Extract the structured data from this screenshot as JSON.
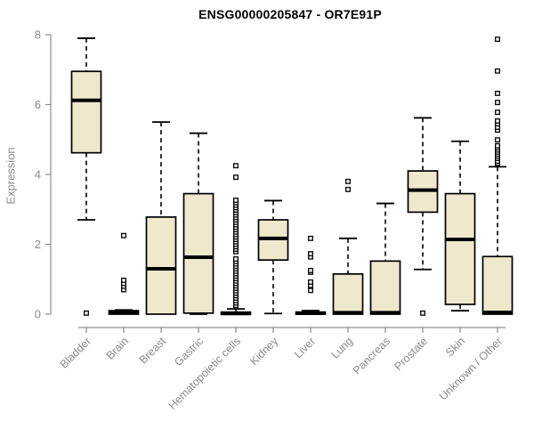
{
  "title": "ENSG00000205847 - OR7E91P",
  "chart_data": {
    "type": "boxplot",
    "title": "ENSG00000205847 - OR7E91P",
    "xlabel": "",
    "ylabel": "Expression",
    "ylim": [
      0,
      8
    ],
    "y_ticks": [
      0,
      2,
      4,
      6,
      8
    ],
    "grid": false,
    "legend": "none",
    "categories": [
      "Bladder",
      "Brain",
      "Breast",
      "Gastric",
      "Hematopoietic cells",
      "Kidney",
      "Liver",
      "Lung",
      "Pancreas",
      "Prostate",
      "Skin",
      "Unknown / Other"
    ],
    "series": [
      {
        "name": "Bladder",
        "whisker_low": 2.7,
        "q1": 4.62,
        "median": 6.12,
        "q3": 6.95,
        "whisker_high": 7.9,
        "outliers": [
          0.03
        ]
      },
      {
        "name": "Brain",
        "whisker_low": 0,
        "q1": 0,
        "median": 0.04,
        "q3": 0.1,
        "whisker_high": 0.12,
        "outliers": [
          0.7,
          0.8,
          0.88,
          0.97,
          2.25
        ]
      },
      {
        "name": "Breast",
        "whisker_low": 0,
        "q1": 0,
        "median": 1.3,
        "q3": 2.78,
        "whisker_high": 5.5,
        "outliers": []
      },
      {
        "name": "Gastric",
        "whisker_low": 0,
        "q1": 0.03,
        "median": 1.63,
        "q3": 3.45,
        "whisker_high": 5.18,
        "outliers": []
      },
      {
        "name": "Hematopoietic cells",
        "whisker_low": 0,
        "q1": 0,
        "median": 0.02,
        "q3": 0.06,
        "whisker_high": 0.15,
        "outliers": [
          0.25,
          0.32,
          0.39,
          0.46,
          0.53,
          0.6,
          0.67,
          0.74,
          0.81,
          0.88,
          0.95,
          1.02,
          1.09,
          1.16,
          1.23,
          1.3,
          1.37,
          1.44,
          1.51,
          1.58,
          1.79,
          1.86,
          1.93,
          2.0,
          2.07,
          2.14,
          2.21,
          2.28,
          2.35,
          2.42,
          2.49,
          2.56,
          2.63,
          2.7,
          2.77,
          2.84,
          2.91,
          2.98,
          3.05,
          3.12,
          3.19,
          3.26,
          3.92,
          4.25
        ]
      },
      {
        "name": "Kidney",
        "whisker_low": 0.02,
        "q1": 1.55,
        "median": 2.17,
        "q3": 2.7,
        "whisker_high": 3.25,
        "outliers": []
      },
      {
        "name": "Liver",
        "whisker_low": 0,
        "q1": 0,
        "median": 0.03,
        "q3": 0.06,
        "whisker_high": 0.1,
        "outliers": [
          0.68,
          0.82,
          0.92,
          1.2,
          1.25,
          1.64,
          1.73,
          2.17
        ]
      },
      {
        "name": "Lung",
        "whisker_low": 0,
        "q1": 0,
        "median": 0.04,
        "q3": 1.15,
        "whisker_high": 2.17,
        "outliers": [
          3.57,
          3.8
        ]
      },
      {
        "name": "Pancreas",
        "whisker_low": 0,
        "q1": 0,
        "median": 0.04,
        "q3": 1.52,
        "whisker_high": 3.17,
        "outliers": []
      },
      {
        "name": "Prostate",
        "whisker_low": 1.28,
        "q1": 2.92,
        "median": 3.55,
        "q3": 4.1,
        "whisker_high": 5.62,
        "outliers": [
          0.03
        ]
      },
      {
        "name": "Skin",
        "whisker_low": 0.1,
        "q1": 0.28,
        "median": 2.14,
        "q3": 3.45,
        "whisker_high": 4.95,
        "outliers": []
      },
      {
        "name": "Unknown / Other",
        "whisker_low": 0,
        "q1": 0,
        "median": 0.05,
        "q3": 1.65,
        "whisker_high": 4.22,
        "outliers": [
          4.32,
          4.38,
          4.46,
          4.52,
          4.58,
          4.64,
          4.7,
          4.76,
          4.82,
          4.99,
          5.27,
          5.35,
          5.45,
          5.53,
          5.78,
          6.06,
          6.32,
          6.96,
          7.87
        ]
      }
    ],
    "colors": {
      "box_fill": "#EEE8CD",
      "box_border": "#000000",
      "median": "#000000",
      "whisker": "#000000",
      "outlier": "#000000",
      "axis": "#8C8C8C",
      "tick_label": "#8a8a8a",
      "title": "#000000",
      "background": "#FFFFFF"
    }
  }
}
